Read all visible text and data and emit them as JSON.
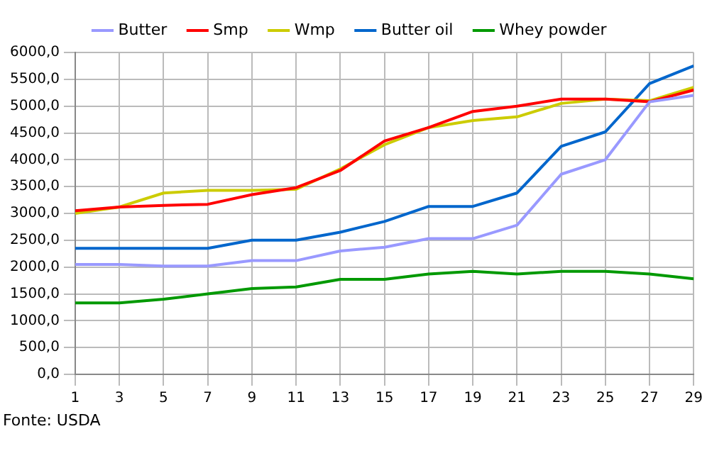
{
  "chart_data": {
    "type": "line",
    "x": [
      1,
      3,
      5,
      7,
      9,
      11,
      13,
      15,
      17,
      19,
      21,
      23,
      25,
      27,
      29
    ],
    "xlim": [
      1,
      29
    ],
    "xticks": [
      1,
      3,
      5,
      7,
      9,
      11,
      13,
      15,
      17,
      19,
      21,
      23,
      25,
      27,
      29
    ],
    "series": [
      {
        "name": "Butter",
        "color": "#9999ff",
        "values": [
          2050,
          2050,
          2020,
          2020,
          2120,
          2120,
          2300,
          2370,
          2530,
          2530,
          2780,
          3730,
          4000,
          5080,
          5200
        ]
      },
      {
        "name": "Smp",
        "color": "#ff0000",
        "values": [
          3050,
          3120,
          3150,
          3170,
          3350,
          3480,
          3800,
          4350,
          4600,
          4900,
          5000,
          5130,
          5130,
          5080,
          5300
        ]
      },
      {
        "name": "Wmp",
        "color": "#cccc00",
        "values": [
          3000,
          3120,
          3380,
          3430,
          3430,
          3450,
          3830,
          4280,
          4600,
          4730,
          4800,
          5050,
          5130,
          5100,
          5350
        ]
      },
      {
        "name": "Butter oil",
        "color": "#0066cc",
        "values": [
          2350,
          2350,
          2350,
          2350,
          2500,
          2500,
          2650,
          2850,
          3130,
          3130,
          3380,
          4250,
          4520,
          5420,
          5750
        ]
      },
      {
        "name": "Whey powder",
        "color": "#009900",
        "values": [
          1330,
          1330,
          1400,
          1500,
          1600,
          1630,
          1770,
          1770,
          1870,
          1920,
          1870,
          1920,
          1920,
          1870,
          1780
        ]
      }
    ],
    "ylim": [
      0,
      6000
    ],
    "yticks": [
      {
        "value": 0,
        "label": "0,0"
      },
      {
        "value": 500,
        "label": "500,0"
      },
      {
        "value": 1000,
        "label": "1000,0"
      },
      {
        "value": 1500,
        "label": "1500,0"
      },
      {
        "value": 2000,
        "label": "2000,0"
      },
      {
        "value": 2500,
        "label": "2500,0"
      },
      {
        "value": 3000,
        "label": "3000,0"
      },
      {
        "value": 3500,
        "label": "3500,0"
      },
      {
        "value": 4000,
        "label": "4000,0"
      },
      {
        "value": 4500,
        "label": "4500,0"
      },
      {
        "value": 5000,
        "label": "5000,0"
      },
      {
        "value": 5500,
        "label": "5500,0"
      },
      {
        "value": 6000,
        "label": "6000,0"
      }
    ],
    "grid": true,
    "legend": "top",
    "marker": "none",
    "line_style": "solid",
    "annotations": [
      "Fonte: USDA"
    ]
  }
}
